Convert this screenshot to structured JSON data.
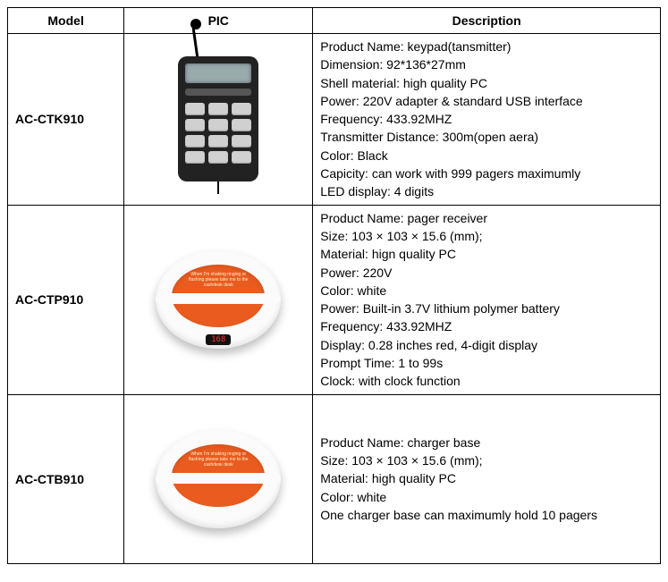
{
  "table": {
    "headers": {
      "model": "Model",
      "pic": "PIC",
      "desc": "Description"
    },
    "col_widths": {
      "model": 120,
      "pic": 200,
      "desc": 400
    },
    "border_color": "#000000",
    "rows": [
      {
        "model": "AC-CTK910",
        "pic_type": "keypad",
        "desc": [
          "Product Name: keypad(tansmitter)",
          "Dimension: 92*136*27mm",
          "Shell material: high quality PC",
          "Power: 220V adapter & standard USB interface",
          "Frequency: 433.92MHZ",
          "Transmitter Distance: 300m(open aera)",
          "Color: Black",
          "Capicity: can work with 999 pagers maximumly",
          "LED display: 4 digits"
        ]
      },
      {
        "model": "AC-CTP910",
        "pic_type": "pager",
        "led_text": "168",
        "desc": [
          "Product Name: pager receiver",
          "Size: 103 × 103 × 15.6 (mm);",
          "Material: hign quality PC",
          "Power: 220V",
          "Color: white",
          "Power: Built-in 3.7V lithium polymer battery",
          "Frequency: 433.92MHZ",
          "Display: 0.28 inches red, 4-digit display",
          "Prompt Time: 1 to 99s",
          "Clock: with clock function"
        ]
      },
      {
        "model": "AC-CTB910",
        "pic_type": "charger",
        "desc": [
          "Product Name: charger base",
          "Size: 103 × 103 × 15.6 (mm);",
          "Material: high quality PC",
          "Color: white",
          "One charger base can maximumly hold 10 pagers"
        ]
      }
    ]
  },
  "colors": {
    "keypad_body": "#222222",
    "keypad_screen": "#99aaaa",
    "keypad_key": "#d0d0d0",
    "pager_shell": "#fbfbfb",
    "pager_mid": "#e95b1f",
    "pager_led_bg": "#111111",
    "pager_led_text": "#ff3333"
  }
}
